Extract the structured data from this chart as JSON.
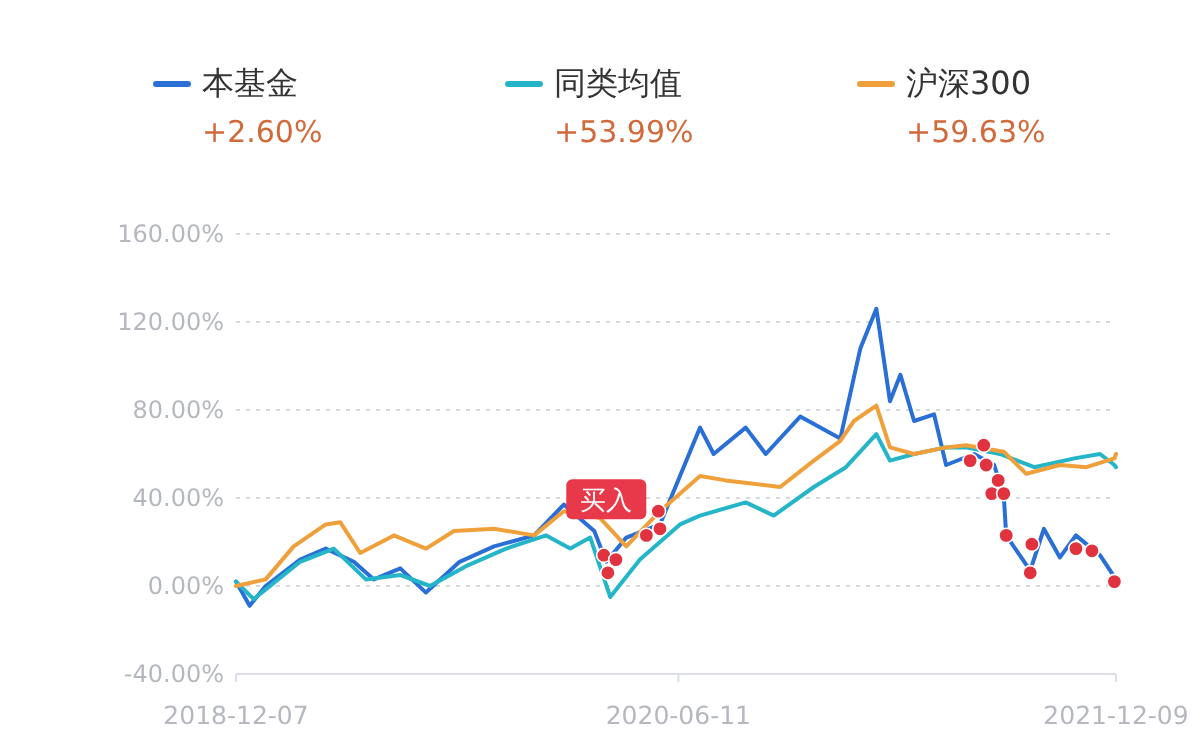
{
  "chart_data": {
    "type": "line",
    "legend": "top",
    "grid": "y",
    "line_style": "solid",
    "xlim": [
      "2018-12-07",
      "2021-12-09"
    ],
    "xticks": [
      "2018-12-07",
      "2020-06-11",
      "2021-12-09"
    ],
    "ylim": [
      -40,
      160
    ],
    "yticks": [
      {
        "value": -40,
        "label": "-40.00%"
      },
      {
        "value": 0,
        "label": "0.00%"
      },
      {
        "value": 40,
        "label": "40.00%"
      },
      {
        "value": 80,
        "label": "80.00%"
      },
      {
        "value": 120,
        "label": "120.00%"
      },
      {
        "value": 160,
        "label": "160.00%"
      }
    ],
    "annotations": [
      "+2.60%",
      "+53.99%",
      "+59.63%",
      {
        "text": "买入",
        "x": "2020-03-13",
        "y": 14
      }
    ],
    "series": [
      {
        "name": "本基金",
        "color": "#2a6fd6",
        "x": [
          "2018-12-07",
          "2018-12-24",
          "2019-01-13",
          "2019-02-25",
          "2019-03-29",
          "2019-05-03",
          "2019-05-28",
          "2019-06-30",
          "2019-08-01",
          "2019-09-12",
          "2019-10-25",
          "2019-12-14",
          "2020-01-20",
          "2020-02-27",
          "2020-03-13",
          "2020-04-07",
          "2020-05-19",
          "2020-07-08",
          "2020-07-25",
          "2020-09-03",
          "2020-09-28",
          "2020-11-10",
          "2020-12-30",
          "2021-01-24",
          "2021-02-13",
          "2021-03-02",
          "2021-03-15",
          "2021-04-01",
          "2021-04-26",
          "2021-05-11",
          "2021-06-15",
          "2021-07-10",
          "2021-07-22",
          "2021-07-25",
          "2021-08-24",
          "2021-09-10",
          "2021-09-30",
          "2021-10-20",
          "2021-11-19",
          "2021-12-09"
        ],
        "values": [
          2,
          -9,
          0,
          12,
          17,
          11,
          3,
          8,
          -3,
          11,
          18,
          23,
          37,
          25,
          11,
          22,
          28,
          72,
          60,
          72,
          60,
          77,
          67,
          108,
          126,
          84,
          96,
          75,
          78,
          55,
          60,
          55,
          41,
          23,
          7,
          26,
          13,
          23,
          14,
          3
        ]
      },
      {
        "name": "同类均值",
        "color": "#25b5c9",
        "x": [
          "2018-12-07",
          "2018-12-29",
          "2019-02-25",
          "2019-04-08",
          "2019-05-18",
          "2019-06-30",
          "2019-08-06",
          "2019-09-20",
          "2019-11-09",
          "2019-12-29",
          "2020-01-28",
          "2020-02-22",
          "2020-03-18",
          "2020-04-24",
          "2020-06-13",
          "2020-07-08",
          "2020-09-03",
          "2020-10-08",
          "2020-11-27",
          "2021-01-06",
          "2021-02-13",
          "2021-03-02",
          "2021-04-01",
          "2021-05-11",
          "2021-06-05",
          "2021-07-17",
          "2021-08-29",
          "2021-10-18",
          "2021-11-19",
          "2021-12-07",
          "2021-12-09"
        ],
        "values": [
          2,
          -6,
          11,
          17,
          3,
          5,
          0,
          9,
          17,
          23,
          17,
          22,
          -5,
          12,
          28,
          32,
          38,
          32,
          45,
          54,
          69,
          57,
          60,
          63,
          63,
          60,
          54,
          58,
          60,
          55,
          54
        ]
      },
      {
        "name": "沪深300",
        "color": "#f0a03a",
        "x": [
          "2018-12-07",
          "2019-01-13",
          "2019-02-17",
          "2019-03-29",
          "2019-04-16",
          "2019-05-11",
          "2019-06-22",
          "2019-08-01",
          "2019-09-05",
          "2019-10-25",
          "2019-12-14",
          "2020-01-20",
          "2020-03-05",
          "2020-04-07",
          "2020-05-19",
          "2020-07-08",
          "2020-08-09",
          "2020-10-16",
          "2020-11-27",
          "2020-12-30",
          "2021-01-16",
          "2021-02-13",
          "2021-03-02",
          "2021-04-01",
          "2021-05-11",
          "2021-06-05",
          "2021-07-22",
          "2021-08-19",
          "2021-09-30",
          "2021-11-02",
          "2021-12-07",
          "2021-12-09"
        ],
        "values": [
          0,
          3,
          18,
          28,
          29,
          15,
          23,
          17,
          25,
          26,
          23,
          34,
          31,
          18,
          34,
          50,
          48,
          45,
          57,
          66,
          75,
          82,
          63,
          60,
          63,
          64,
          61,
          51,
          55,
          54,
          58,
          60
        ]
      },
      {
        "type": "scatter",
        "color": "#e0323f",
        "x": [
          "2020-03-10",
          "2020-03-15",
          "2020-03-25",
          "2020-05-02",
          "2020-05-17",
          "2020-05-19",
          "2021-06-10",
          "2021-06-27",
          "2021-06-30",
          "2021-07-07",
          "2021-07-15",
          "2021-07-22",
          "2021-07-25",
          "2021-08-24",
          "2021-08-26",
          "2021-10-20",
          "2021-11-09",
          "2021-12-07"
        ],
        "values": [
          14,
          6,
          12,
          23,
          34,
          26,
          57,
          64,
          55,
          42,
          48,
          42,
          23,
          6,
          19,
          17,
          16,
          2
        ]
      }
    ]
  }
}
